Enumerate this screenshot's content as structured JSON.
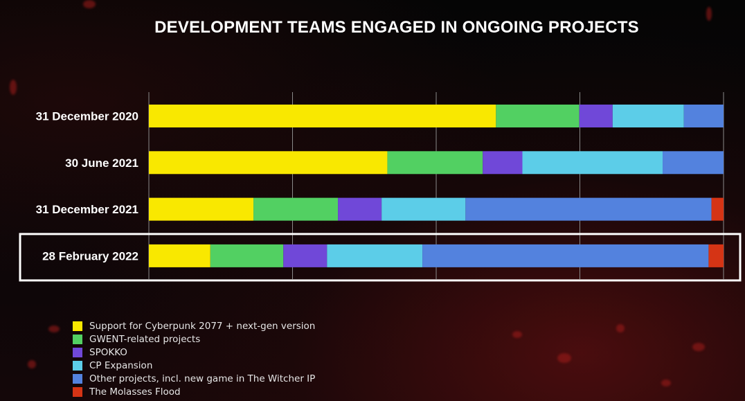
{
  "chart_data": {
    "type": "bar",
    "orientation": "horizontal",
    "stacked": true,
    "normalized": true,
    "title": "DEVELOPMENT TEAMS ENGAGED IN ONGOING PROJECTS",
    "categories": [
      "31 December 2020",
      "30 June 2021",
      "31 December 2021",
      "28 February 2022"
    ],
    "highlighted_category": "28 February 2022",
    "xlim": [
      0,
      100
    ],
    "grid": true,
    "legend_position": "bottom-left",
    "series": [
      {
        "name": "Support for Cyberpunk 2077 + next-gen version",
        "color": "#f9e800",
        "values": [
          60.4,
          41.5,
          18.2,
          10.7
        ]
      },
      {
        "name": "GWENT-related projects",
        "color": "#52d062",
        "values": [
          14.5,
          16.6,
          14.7,
          12.7
        ]
      },
      {
        "name": "SPOKKO",
        "color": "#7048d8",
        "values": [
          5.8,
          6.9,
          7.6,
          7.6
        ]
      },
      {
        "name": "CP Expansion",
        "color": "#5ccde8",
        "values": [
          12.4,
          24.4,
          14.6,
          16.6
        ]
      },
      {
        "name": "Other projects, incl. new game in The Witcher IP",
        "color": "#5382de",
        "values": [
          6.9,
          10.6,
          42.8,
          49.8
        ]
      },
      {
        "name": "The Molasses Flood",
        "color": "#d53415",
        "values": [
          0,
          0,
          2.1,
          2.6
        ]
      }
    ]
  }
}
